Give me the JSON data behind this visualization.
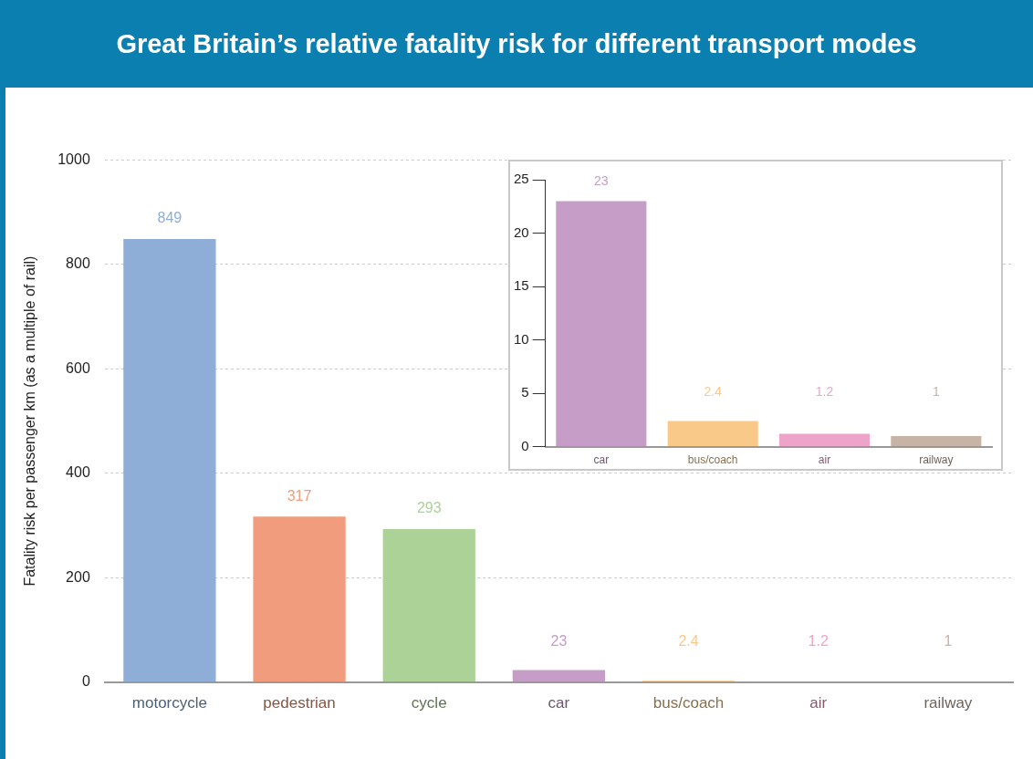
{
  "chart_data": [
    {
      "type": "bar",
      "title": "Great Britain’s relative fatality risk for different transport modes",
      "ylabel": "Fatality risk per passenger km (as a multiple of rail)",
      "categories": [
        "motorcycle",
        "pedestrian",
        "cycle",
        "car",
        "bus/coach",
        "air",
        "railway"
      ],
      "values": [
        849,
        317,
        293,
        23,
        2.4,
        1.2,
        1
      ],
      "colors": [
        "#8eaed8",
        "#f19c7c",
        "#acd297",
        "#c59dc7",
        "#f9c98a",
        "#eea3c8",
        "#c8b4a5"
      ],
      "ylim": [
        0,
        1000
      ],
      "yticks": [
        0,
        200,
        400,
        600,
        800,
        1000
      ],
      "grid": "y",
      "line_style": "dashed",
      "data_labels": true,
      "legend": false
    },
    {
      "type": "bar",
      "categories": [
        "car",
        "bus/coach",
        "air",
        "railway"
      ],
      "values": [
        23,
        2.4,
        1.2,
        1
      ],
      "colors": [
        "#c59dc7",
        "#f9c98a",
        "#eea3c8",
        "#c8b4a5"
      ],
      "ylim": [
        0,
        25
      ],
      "yticks": [
        0,
        5,
        10,
        15,
        20,
        25
      ],
      "grid": false,
      "data_labels": true,
      "legend": false
    }
  ]
}
